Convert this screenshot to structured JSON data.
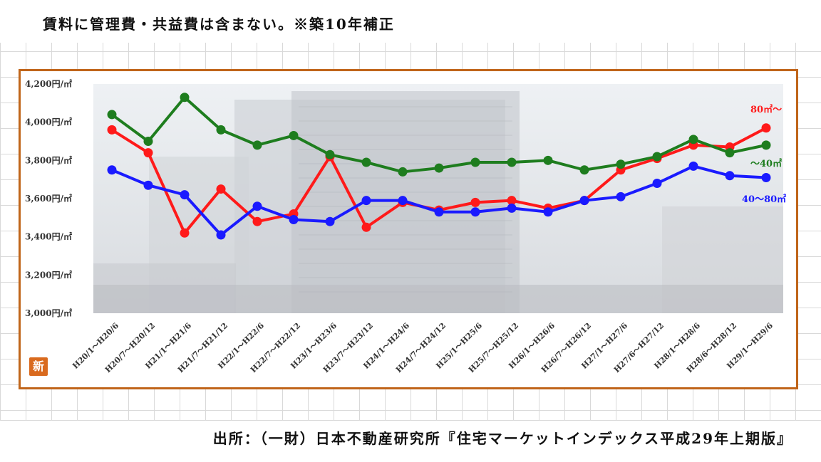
{
  "note": "賃料に管理費・共益費は含まない。※築10年補正",
  "source": "出所：（一財）日本不動産研究所『住宅マーケットインデックス平成29年上期版』",
  "badge_text": "新",
  "colors": {
    "frame": "#c0651a",
    "red": "#ff1a1a",
    "green": "#1e7d1e",
    "blue": "#1a1aff"
  },
  "chart_data": {
    "type": "line",
    "title": "",
    "xlabel": "",
    "ylabel": "",
    "ylim": [
      3000,
      4200
    ],
    "yticks": [
      3000,
      3200,
      3400,
      3600,
      3800,
      4000,
      4200
    ],
    "ytick_labels": [
      "3,000円/㎡",
      "3,200円/㎡",
      "3,400円/㎡",
      "3,600円/㎡",
      "3,800円/㎡",
      "4,000円/㎡",
      "4,200円/㎡"
    ],
    "categories": [
      "H20/1～H20/6",
      "H20/7～H20/12",
      "H21/1～H21/6",
      "H21/7～H21/12",
      "H22/1～H22/6",
      "H22/7～H22/12",
      "H23/1～H23/6",
      "H23/7～H23/12",
      "H24/1～H24/6",
      "H24/7～H24/12",
      "H25/1～H25/6",
      "H25/7～H25/12",
      "H26/1～H26/6",
      "H26/7～H26/12",
      "H27/1～H27/6",
      "H27/6～H27/12",
      "H28/1～H28/6",
      "H28/6～H28/12",
      "H29/1～H29/6"
    ],
    "series": [
      {
        "name": "80㎡～",
        "color": "#ff1a1a",
        "values": [
          3960,
          3840,
          3420,
          3650,
          3480,
          3520,
          3820,
          3450,
          3580,
          3540,
          3580,
          3590,
          3550,
          3590,
          3750,
          3810,
          3880,
          3870,
          3970
        ]
      },
      {
        "name": "～40㎡",
        "color": "#1e7d1e",
        "values": [
          4040,
          3900,
          4130,
          3960,
          3880,
          3930,
          3830,
          3790,
          3740,
          3760,
          3790,
          3790,
          3800,
          3750,
          3780,
          3820,
          3910,
          3840,
          3880
        ]
      },
      {
        "name": "40～80㎡",
        "color": "#1a1aff",
        "values": [
          3750,
          3670,
          3620,
          3410,
          3560,
          3490,
          3480,
          3590,
          3590,
          3530,
          3530,
          3550,
          3530,
          3590,
          3610,
          3680,
          3770,
          3720,
          3710
        ]
      }
    ],
    "grid": false
  }
}
